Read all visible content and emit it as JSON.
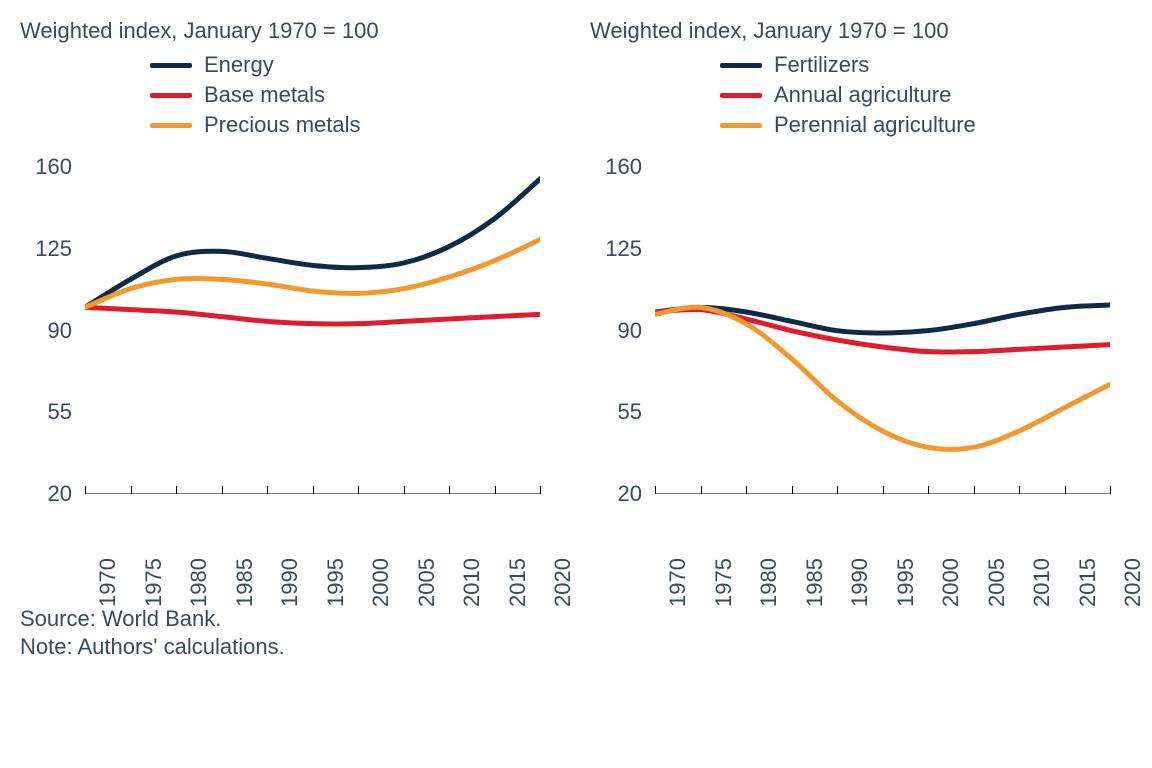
{
  "global": {
    "background_color": "#ffffff",
    "text_color": "#3b4a5a",
    "font_family": "Verdana, sans-serif",
    "title_fontsize": 22,
    "tick_fontsize": 22,
    "legend_fontsize": 22,
    "line_width": 5,
    "legend_swatch_width": 42,
    "legend_swatch_height": 5
  },
  "panels": [
    {
      "id": "left",
      "title": "Weighted index, January 1970 = 100",
      "type": "line",
      "ylim": [
        20,
        170
      ],
      "yticks": [
        20,
        55,
        90,
        125,
        160
      ],
      "x_years": [
        1970,
        1975,
        1980,
        1985,
        1990,
        1995,
        2000,
        2005,
        2010,
        2015,
        2020
      ],
      "xlim": [
        1970,
        2020
      ],
      "axis_line_color": "#000000",
      "series": [
        {
          "name": "Energy",
          "color": "#0e2a47",
          "x": [
            1970,
            1975,
            1980,
            1985,
            1990,
            1995,
            2000,
            2005,
            2010,
            2015,
            2020
          ],
          "y": [
            100,
            112,
            122,
            124,
            121,
            118,
            117,
            119,
            126,
            138,
            155
          ]
        },
        {
          "name": "Base metals",
          "color": "#e11a2c",
          "x": [
            1970,
            1975,
            1980,
            1985,
            1990,
            1995,
            2000,
            2005,
            2010,
            2015,
            2020
          ],
          "y": [
            100,
            99,
            98,
            96,
            94,
            93,
            93,
            94,
            95,
            96,
            97
          ]
        },
        {
          "name": "Precious metals",
          "color": "#f3982c",
          "x": [
            1970,
            1975,
            1980,
            1985,
            1990,
            1995,
            2000,
            2005,
            2010,
            2015,
            2020
          ],
          "y": [
            100,
            108,
            112,
            112,
            110,
            107,
            106,
            108,
            113,
            120,
            129
          ]
        }
      ]
    },
    {
      "id": "right",
      "title": "Weighted index, January 1970 = 100",
      "type": "line",
      "ylim": [
        20,
        170
      ],
      "yticks": [
        20,
        55,
        90,
        125,
        160
      ],
      "x_years": [
        1970,
        1975,
        1980,
        1985,
        1990,
        1995,
        2000,
        2005,
        2010,
        2015,
        2020
      ],
      "xlim": [
        1970,
        2020
      ],
      "axis_line_color": "#000000",
      "series": [
        {
          "name": "Fertilizers",
          "color": "#0e2a47",
          "x": [
            1970,
            1975,
            1980,
            1985,
            1990,
            1995,
            2000,
            2005,
            2010,
            2015,
            2020
          ],
          "y": [
            98,
            100,
            98,
            94,
            90,
            89,
            90,
            93,
            97,
            100,
            101
          ]
        },
        {
          "name": "Annual agriculture",
          "color": "#e11a2c",
          "x": [
            1970,
            1975,
            1980,
            1985,
            1990,
            1995,
            2000,
            2005,
            2010,
            2015,
            2020
          ],
          "y": [
            98,
            99,
            95,
            90,
            86,
            83,
            81,
            81,
            82,
            83,
            84
          ]
        },
        {
          "name": "Perennial agriculture",
          "color": "#f3982c",
          "x": [
            1970,
            1975,
            1980,
            1985,
            1990,
            1995,
            2000,
            2005,
            2010,
            2015,
            2020
          ],
          "y": [
            97,
            100,
            93,
            78,
            60,
            47,
            40,
            40,
            47,
            57,
            67
          ]
        }
      ]
    }
  ],
  "footnotes": {
    "source": "Source: World Bank.",
    "note": "Note: Authors' calculations."
  }
}
